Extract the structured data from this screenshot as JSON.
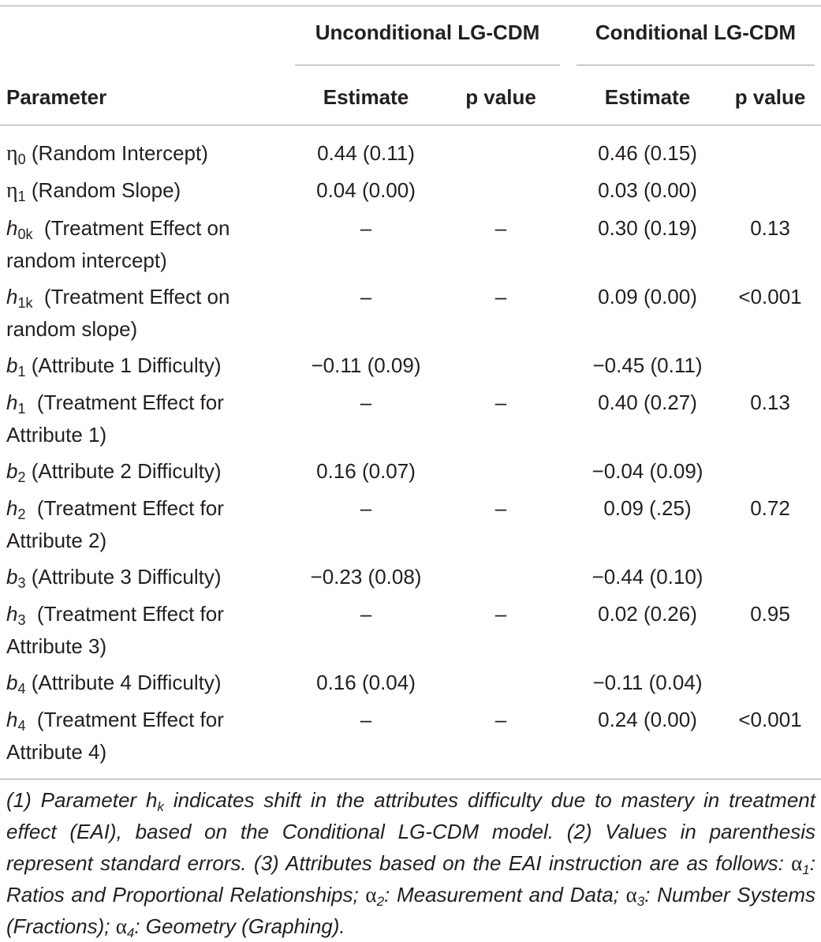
{
  "header": {
    "group_unconditional": "Unconditional LG-CDM",
    "group_conditional": "Conditional LG-CDM",
    "parameter": "Parameter",
    "estimate_u": "Estimate",
    "pvalue_u": "p value",
    "estimate_c": "Estimate",
    "pvalue_c": "p value"
  },
  "rows": [
    {
      "sym": "η",
      "sub": "0",
      "italic": false,
      "desc": " (Random Intercept)",
      "ue": "0.44 (0.11)",
      "up": "",
      "ce": "0.46 (0.15)",
      "cp": ""
    },
    {
      "sym": "η",
      "sub": "1",
      "italic": false,
      "desc": " (Random Slope)",
      "ue": "0.04 (0.00)",
      "up": "",
      "ce": "0.03 (0.00)",
      "cp": ""
    },
    {
      "sym": "h",
      "sub": "0k",
      "italic": true,
      "desc": "  (Treatment Effect on random intercept)",
      "ue": "–",
      "up": "–",
      "ce": "0.30 (0.19)",
      "cp": "0.13"
    },
    {
      "sym": "h",
      "sub": "1k",
      "italic": true,
      "desc": "  (Treatment Effect on random slope)",
      "ue": "–",
      "up": "–",
      "ce": "0.09 (0.00)",
      "cp": "<0.001"
    },
    {
      "sym": "b",
      "sub": "1",
      "italic": true,
      "desc": " (Attribute 1 Difficulty)",
      "ue": "−0.11 (0.09)",
      "up": "",
      "ce": "−0.45 (0.11)",
      "cp": ""
    },
    {
      "sym": "h",
      "sub": "1",
      "italic": true,
      "desc": "  (Treatment Effect for Attribute 1)",
      "ue": "–",
      "up": "–",
      "ce": "0.40 (0.27)",
      "cp": "0.13"
    },
    {
      "sym": "b",
      "sub": "2",
      "italic": true,
      "desc": " (Attribute 2 Difficulty)",
      "ue": "0.16 (0.07)",
      "up": "",
      "ce": "−0.04 (0.09)",
      "cp": ""
    },
    {
      "sym": "h",
      "sub": "2",
      "italic": true,
      "desc": "  (Treatment Effect for Attribute 2)",
      "ue": "–",
      "up": "–",
      "ce": "0.09 (.25)",
      "cp": "0.72"
    },
    {
      "sym": "b",
      "sub": "3",
      "italic": true,
      "desc": " (Attribute 3 Difficulty)",
      "ue": "−0.23 (0.08)",
      "up": "",
      "ce": "−0.44 (0.10)",
      "cp": ""
    },
    {
      "sym": "h",
      "sub": "3",
      "italic": true,
      "desc": "  (Treatment Effect for Attribute 3)",
      "ue": "–",
      "up": "–",
      "ce": "0.02 (0.26)",
      "cp": "0.95"
    },
    {
      "sym": "b",
      "sub": "4",
      "italic": true,
      "desc": " (Attribute 4 Difficulty)",
      "ue": "0.16 (0.04)",
      "up": "",
      "ce": "−0.11 (0.04)",
      "cp": ""
    },
    {
      "sym": "h",
      "sub": "4",
      "italic": true,
      "desc": "  (Treatment Effect for Attribute 4)",
      "ue": "–",
      "up": "–",
      "ce": "0.24 (0.00)",
      "cp": "<0.001"
    }
  ],
  "footnote": {
    "p1_a": "(1) Parameter h",
    "p1_sub": "k",
    "p1_b": " indicates shift in the attributes difficulty due to mastery in treatment effect (EAI), based on the Conditional LG-CDM model. (2) Values in parenthesis represent standard errors. (3) Attributes based on the EAI instruction are as follows: ",
    "a1_sym": "α",
    "a1_sub": "1",
    "a1_text": ": Ratios and Proportional Relationships; ",
    "a2_sym": "α",
    "a2_sub": "2",
    "a2_text": ": Measurement and Data; ",
    "a3_sym": "α",
    "a3_sub": "3",
    "a3_text": ": Number Systems (Fractions); ",
    "a4_sym": "α",
    "a4_sub": "4",
    "a4_text": ": Geometry (Graphing)."
  }
}
